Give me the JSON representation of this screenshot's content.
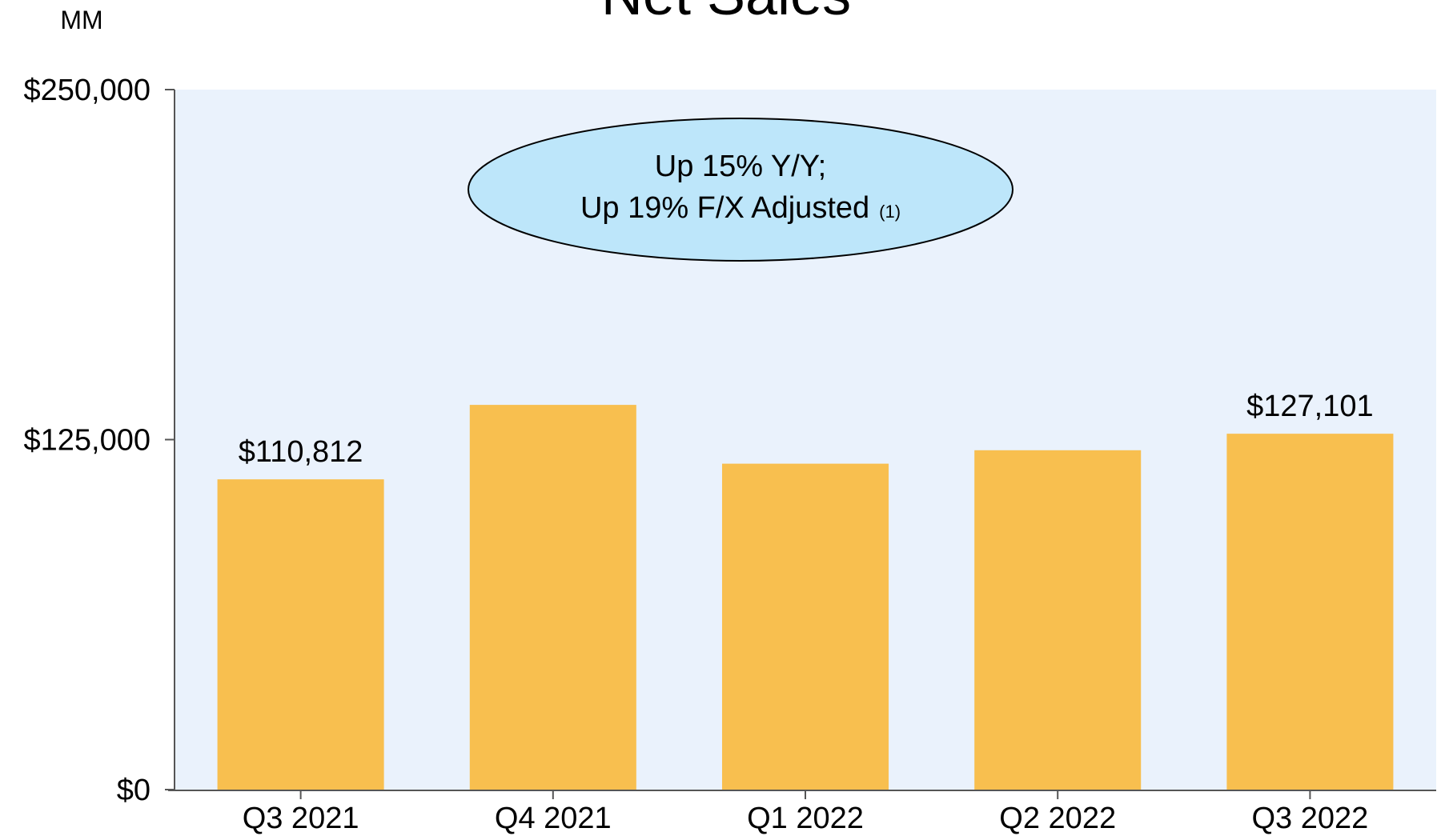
{
  "chart_data": {
    "type": "bar",
    "title": "Net Sales",
    "unit_label": "MM",
    "categories": [
      "Q3 2021",
      "Q4 2021",
      "Q1 2022",
      "Q2 2022",
      "Q3 2022"
    ],
    "values": [
      110812,
      137400,
      116400,
      121200,
      127101
    ],
    "value_labels": [
      "$110,812",
      null,
      null,
      null,
      "$127,101"
    ],
    "color": "#f8bf4f",
    "plot_background": "#eaf2fc",
    "ylim": [
      0,
      250000
    ],
    "yticks": [
      {
        "value": 0,
        "label": "$0"
      },
      {
        "value": 125000,
        "label": "$125,000"
      },
      {
        "value": 250000,
        "label": "$250,000"
      }
    ],
    "grid": false,
    "annotation": {
      "lines": [
        "Up 15% Y/Y;",
        "Up 19% F/X Adjusted"
      ],
      "footnote": "(1)"
    }
  }
}
